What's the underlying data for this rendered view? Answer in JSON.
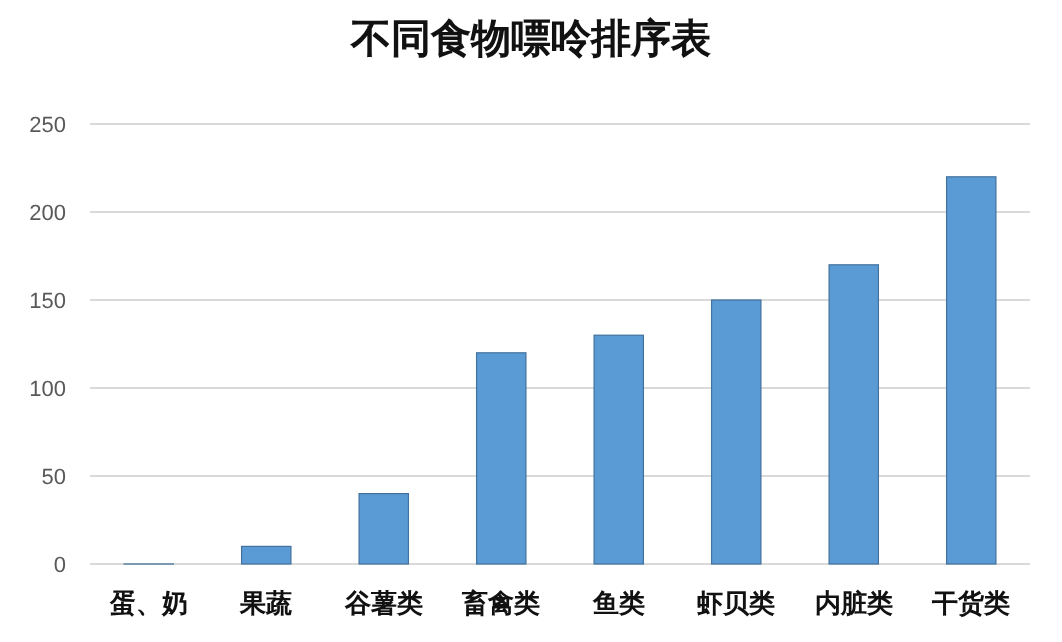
{
  "chart_data": {
    "type": "bar",
    "title": "不同食物嘌呤排序表",
    "categories": [
      "蛋、奶",
      "果蔬",
      "谷薯类",
      "畜禽类",
      "鱼类",
      "虾贝类",
      "内脏类",
      "干货类"
    ],
    "values": [
      0,
      10,
      40,
      120,
      130,
      150,
      170,
      220
    ],
    "color": "#5b9bd5",
    "ylim": [
      0,
      250
    ],
    "yticks": [
      0,
      50,
      100,
      150,
      200,
      250
    ],
    "grid": "y"
  }
}
